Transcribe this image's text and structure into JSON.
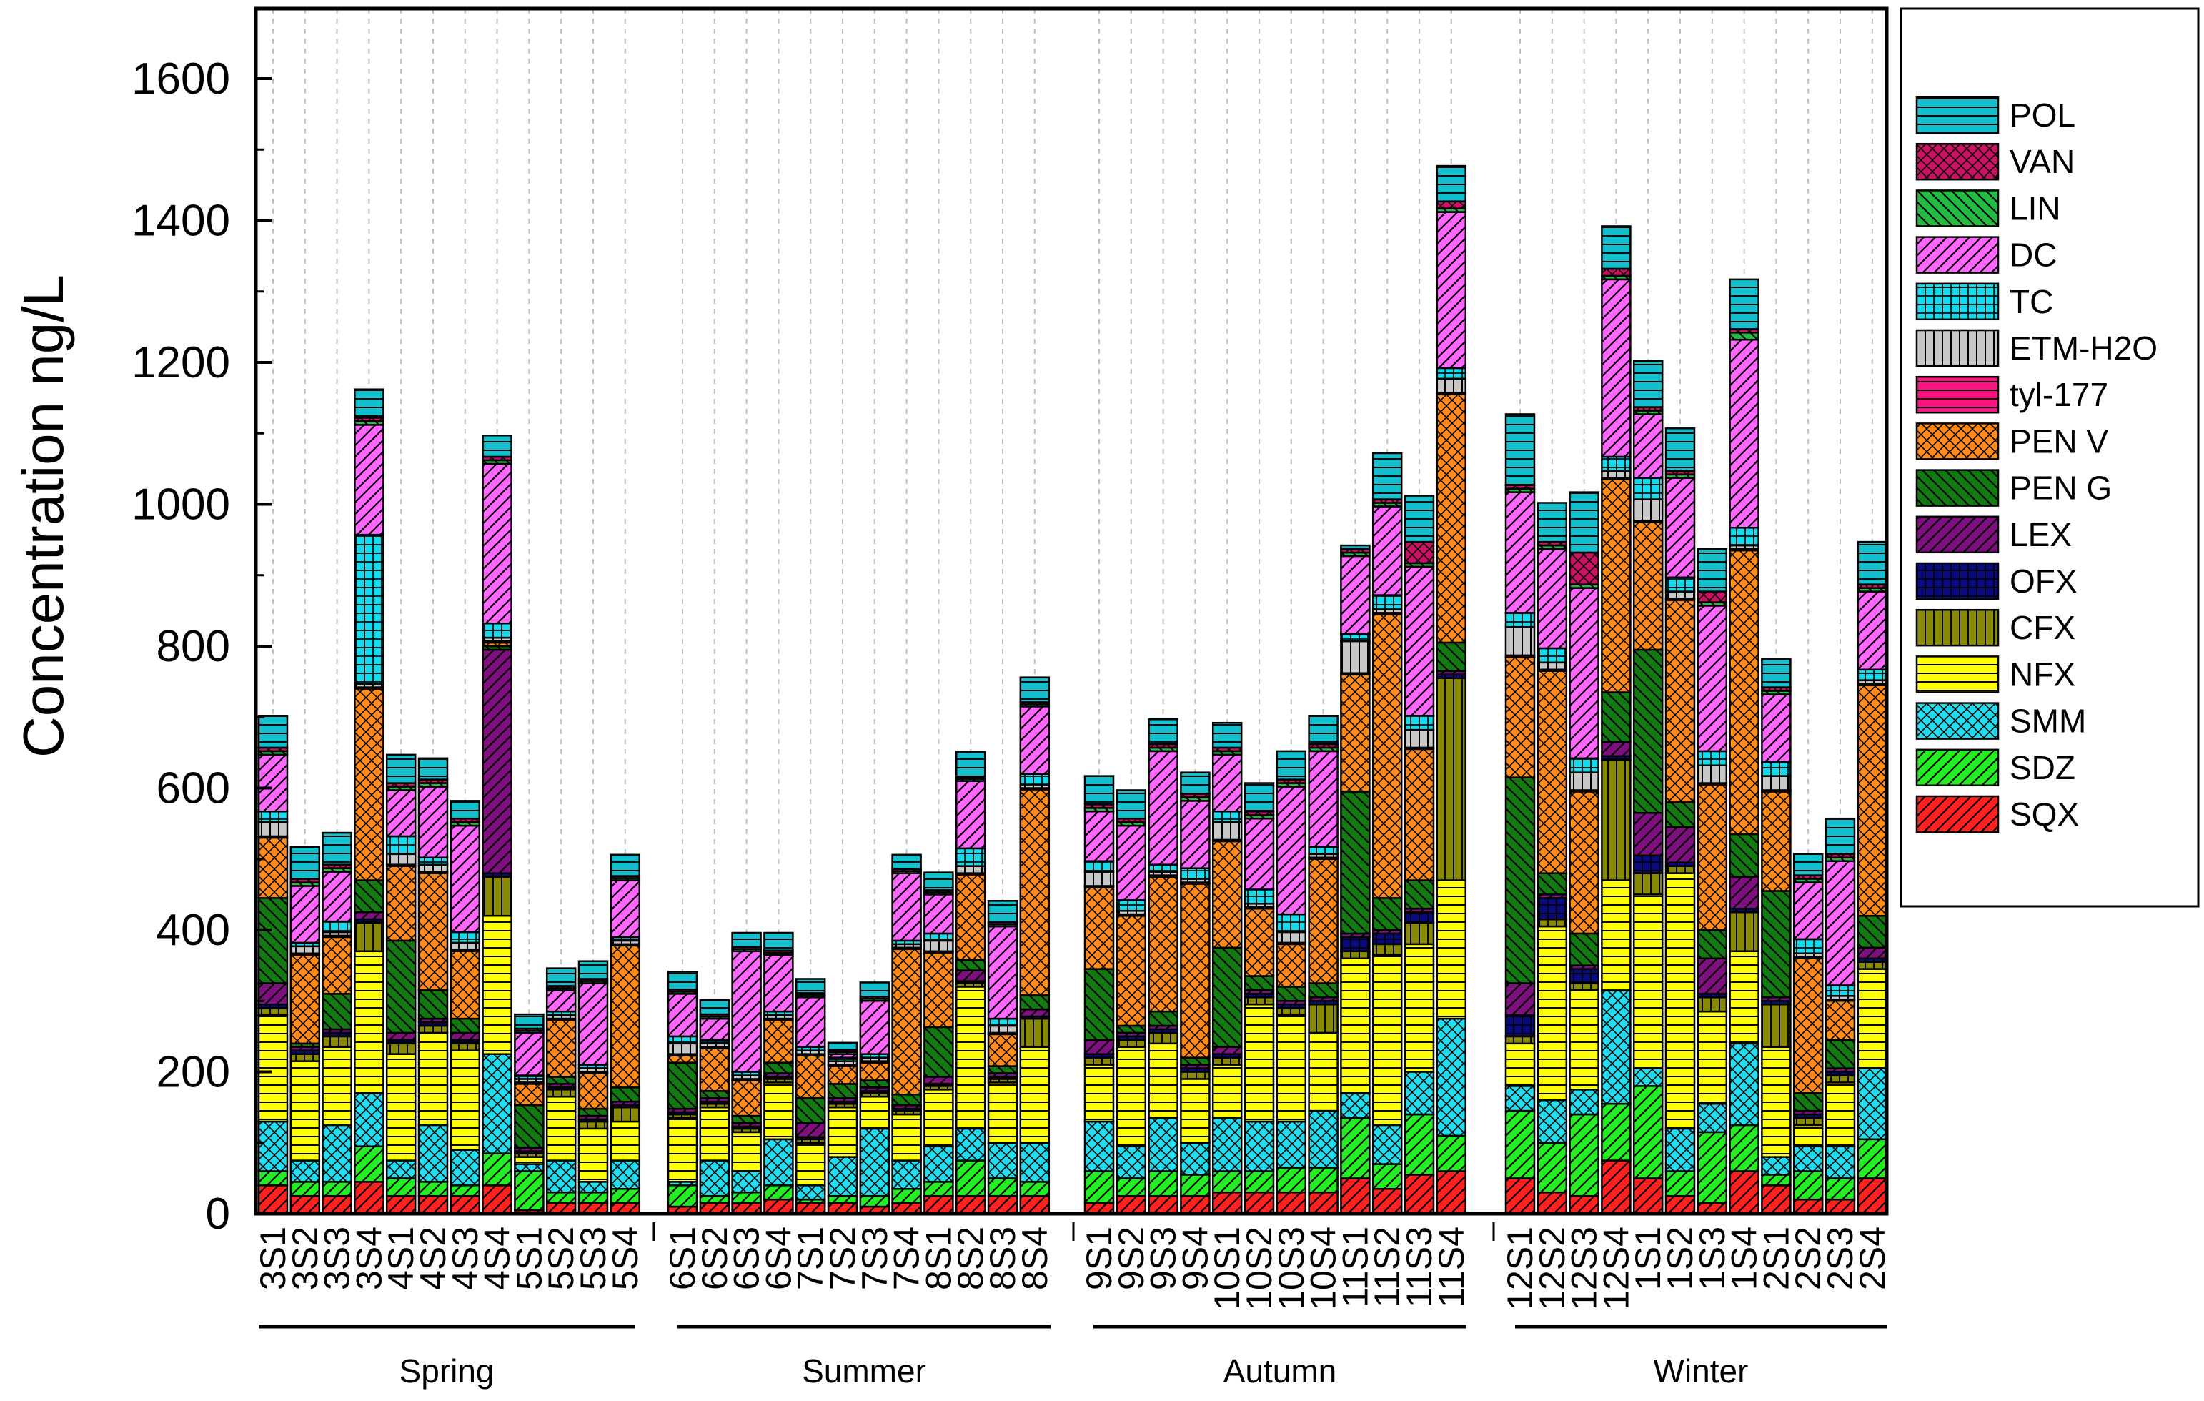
{
  "chart_data": {
    "type": "bar",
    "stacked": true,
    "ylabel": "Concentration ng/L",
    "xlabel": "",
    "ylim": [
      0,
      1700
    ],
    "yticks": [
      0,
      200,
      400,
      600,
      800,
      1000,
      1200,
      1400,
      1600
    ],
    "grid": "vertical dashed",
    "legend_position": "right",
    "categories": [
      "3S1",
      "3S2",
      "3S3",
      "3S4",
      "4S1",
      "4S2",
      "4S3",
      "4S4",
      "5S1",
      "5S2",
      "5S3",
      "5S4",
      "6S1",
      "6S2",
      "6S3",
      "6S4",
      "7S1",
      "7S2",
      "7S3",
      "7S4",
      "8S1",
      "8S2",
      "8S3",
      "8S4",
      "9S1",
      "9S2",
      "9S3",
      "9S4",
      "10S1",
      "10S2",
      "10S3",
      "10S4",
      "11S1",
      "11S2",
      "11S3",
      "11S4",
      "12S1",
      "12S2",
      "12S3",
      "12S4",
      "1S1",
      "1S2",
      "1S3",
      "1S4",
      "2S1",
      "2S2",
      "2S3",
      "2S4"
    ],
    "groups": [
      {
        "label": "Spring",
        "count": 12
      },
      {
        "label": "Summer",
        "count": 12
      },
      {
        "label": "Autumn",
        "count": 12
      },
      {
        "label": "Winter",
        "count": 12
      }
    ],
    "series": [
      {
        "name": "SQX",
        "color": "#ff2020",
        "pattern": "diag-right",
        "values": [
          40,
          25,
          25,
          45,
          25,
          25,
          25,
          40,
          5,
          15,
          15,
          15,
          10,
          15,
          15,
          20,
          15,
          15,
          10,
          15,
          25,
          25,
          25,
          25,
          15,
          25,
          25,
          25,
          30,
          30,
          30,
          30,
          50,
          35,
          55,
          60,
          50,
          30,
          25,
          75,
          50,
          25,
          15,
          60,
          40,
          20,
          20,
          50
        ]
      },
      {
        "name": "SDZ",
        "color": "#22ee22",
        "pattern": "diag-right",
        "values": [
          20,
          20,
          20,
          50,
          25,
          20,
          15,
          45,
          55,
          15,
          15,
          20,
          30,
          10,
          15,
          20,
          5,
          10,
          15,
          20,
          20,
          50,
          25,
          20,
          45,
          25,
          35,
          30,
          30,
          30,
          35,
          35,
          85,
          35,
          85,
          50,
          95,
          70,
          115,
          80,
          130,
          35,
          100,
          65,
          15,
          40,
          30,
          55
        ]
      },
      {
        "name": "SMM",
        "color": "#22ddee",
        "pattern": "cross-diag",
        "values": [
          70,
          30,
          80,
          75,
          25,
          80,
          50,
          140,
          10,
          45,
          15,
          40,
          5,
          50,
          30,
          65,
          20,
          55,
          95,
          40,
          50,
          45,
          50,
          55,
          70,
          45,
          75,
          45,
          75,
          70,
          65,
          80,
          35,
          55,
          60,
          165,
          35,
          60,
          35,
          160,
          25,
          60,
          40,
          115,
          25,
          35,
          45,
          100
        ]
      },
      {
        "name": "NFX",
        "color": "#ffff00",
        "pattern": "horizontal",
        "values": [
          150,
          140,
          110,
          200,
          150,
          130,
          140,
          195,
          10,
          90,
          75,
          55,
          90,
          75,
          55,
          80,
          60,
          70,
          45,
          65,
          80,
          200,
          85,
          135,
          80,
          140,
          105,
          90,
          75,
          165,
          150,
          110,
          190,
          240,
          180,
          195,
          60,
          245,
          140,
          155,
          245,
          360,
          130,
          130,
          155,
          30,
          90,
          140
        ]
      },
      {
        "name": "CFX",
        "color": "#8a8a00",
        "pattern": "vertical",
        "values": [
          10,
          10,
          15,
          40,
          15,
          10,
          10,
          55,
          5,
          10,
          10,
          20,
          5,
          5,
          5,
          5,
          5,
          5,
          5,
          5,
          5,
          5,
          5,
          40,
          10,
          10,
          15,
          10,
          10,
          10,
          10,
          40,
          10,
          15,
          30,
          285,
          10,
          10,
          10,
          170,
          30,
          10,
          20,
          55,
          60,
          10,
          10,
          10
        ]
      },
      {
        "name": "OFX",
        "color": "#0a0a80",
        "pattern": "grid",
        "values": [
          5,
          5,
          5,
          5,
          5,
          5,
          5,
          5,
          3,
          3,
          3,
          3,
          3,
          3,
          3,
          3,
          3,
          3,
          3,
          3,
          3,
          3,
          3,
          3,
          5,
          5,
          5,
          5,
          5,
          5,
          5,
          5,
          20,
          15,
          15,
          5,
          30,
          30,
          20,
          5,
          25,
          5,
          5,
          5,
          5,
          5,
          5,
          5
        ]
      },
      {
        "name": "LEX",
        "color": "#801080",
        "pattern": "diag-right",
        "values": [
          30,
          5,
          5,
          10,
          10,
          5,
          10,
          315,
          5,
          5,
          5,
          5,
          5,
          5,
          5,
          5,
          20,
          5,
          5,
          5,
          10,
          15,
          5,
          10,
          20,
          5,
          5,
          5,
          10,
          5,
          5,
          5,
          5,
          5,
          5,
          5,
          45,
          5,
          5,
          20,
          60,
          50,
          50,
          45,
          5,
          5,
          5,
          15
        ]
      },
      {
        "name": "PEN G",
        "color": "#117a11",
        "pattern": "diag-left",
        "values": [
          120,
          5,
          50,
          45,
          130,
          40,
          20,
          5,
          60,
          10,
          10,
          20,
          65,
          10,
          10,
          15,
          35,
          20,
          10,
          15,
          70,
          15,
          10,
          20,
          100,
          10,
          20,
          10,
          140,
          20,
          20,
          20,
          200,
          45,
          40,
          40,
          290,
          30,
          45,
          70,
          230,
          35,
          40,
          60,
          150,
          25,
          40,
          45
        ]
      },
      {
        "name": "PEN V",
        "color": "#ff8c1a",
        "pattern": "cross-diag",
        "values": [
          85,
          125,
          80,
          270,
          105,
          165,
          95,
          5,
          30,
          80,
          50,
          200,
          10,
          60,
          50,
          60,
          60,
          25,
          25,
          205,
          105,
          120,
          45,
          290,
          115,
          155,
          190,
          245,
          150,
          95,
          60,
          175,
          165,
          400,
          185,
          350,
          170,
          285,
          200,
          300,
          180,
          285,
          205,
          400,
          140,
          190,
          55,
          325
        ]
      },
      {
        "name": "tyl-177",
        "color": "#ff1180",
        "pattern": "horizontal",
        "values": [
          2,
          2,
          2,
          2,
          2,
          2,
          2,
          2,
          2,
          2,
          2,
          2,
          2,
          2,
          2,
          2,
          2,
          2,
          2,
          2,
          2,
          2,
          2,
          2,
          2,
          2,
          2,
          2,
          2,
          2,
          2,
          2,
          2,
          2,
          2,
          2,
          2,
          2,
          2,
          2,
          2,
          2,
          2,
          2,
          2,
          2,
          2,
          2
        ]
      },
      {
        "name": "ETM-H2O",
        "color": "#c8c8c8",
        "pattern": "vertical",
        "values": [
          20,
          10,
          5,
          5,
          15,
          10,
          10,
          5,
          5,
          5,
          5,
          5,
          15,
          5,
          5,
          5,
          5,
          5,
          5,
          5,
          15,
          10,
          10,
          5,
          20,
          5,
          5,
          5,
          25,
          5,
          15,
          5,
          45,
          5,
          25,
          20,
          40,
          10,
          25,
          10,
          30,
          10,
          25,
          5,
          20,
          5,
          5,
          5
        ]
      },
      {
        "name": "TC",
        "color": "#11ddee",
        "pattern": "grid",
        "values": [
          15,
          5,
          15,
          210,
          25,
          10,
          15,
          20,
          5,
          5,
          5,
          5,
          10,
          5,
          5,
          5,
          5,
          5,
          5,
          5,
          10,
          25,
          10,
          15,
          15,
          15,
          10,
          15,
          15,
          20,
          25,
          10,
          10,
          20,
          20,
          15,
          20,
          20,
          20,
          20,
          30,
          20,
          20,
          25,
          20,
          20,
          15,
          15
        ]
      },
      {
        "name": "DC",
        "color": "#ff66ff",
        "pattern": "diag-right",
        "values": [
          80,
          80,
          70,
          155,
          65,
          100,
          150,
          225,
          60,
          30,
          115,
          80,
          60,
          30,
          170,
          80,
          70,
          5,
          75,
          95,
          55,
          95,
          130,
          95,
          70,
          105,
          160,
          95,
          80,
          100,
          180,
          135,
          110,
          125,
          210,
          220,
          170,
          140,
          240,
          250,
          90,
          140,
          205,
          265,
          95,
          80,
          175,
          110
        ]
      },
      {
        "name": "LIN",
        "color": "#22bb44",
        "pattern": "diag-left",
        "values": [
          5,
          5,
          5,
          5,
          5,
          5,
          5,
          5,
          3,
          3,
          3,
          3,
          3,
          3,
          3,
          3,
          3,
          3,
          3,
          3,
          3,
          3,
          3,
          3,
          5,
          5,
          5,
          5,
          5,
          5,
          5,
          5,
          5,
          5,
          5,
          5,
          5,
          5,
          5,
          5,
          5,
          5,
          5,
          10,
          5,
          5,
          5,
          5
        ]
      },
      {
        "name": "VAN",
        "color": "#cc1166",
        "pattern": "cross-diag",
        "values": [
          5,
          5,
          5,
          5,
          5,
          5,
          5,
          5,
          3,
          3,
          3,
          3,
          3,
          3,
          3,
          3,
          3,
          3,
          3,
          3,
          3,
          3,
          3,
          3,
          5,
          5,
          5,
          5,
          5,
          5,
          5,
          5,
          5,
          5,
          30,
          10,
          5,
          5,
          45,
          10,
          5,
          5,
          15,
          5,
          5,
          5,
          5,
          5
        ]
      },
      {
        "name": "POL",
        "color": "#11c0cc",
        "pattern": "horizontal",
        "values": [
          45,
          45,
          45,
          40,
          40,
          30,
          25,
          30,
          20,
          25,
          25,
          30,
          25,
          20,
          20,
          25,
          20,
          10,
          20,
          20,
          25,
          35,
          30,
          35,
          40,
          40,
          35,
          30,
          35,
          40,
          40,
          40,
          5,
          65,
          65,
          50,
          100,
          55,
          85,
          60,
          65,
          60,
          60,
          70,
          40,
          30,
          50,
          60
        ]
      }
    ]
  }
}
